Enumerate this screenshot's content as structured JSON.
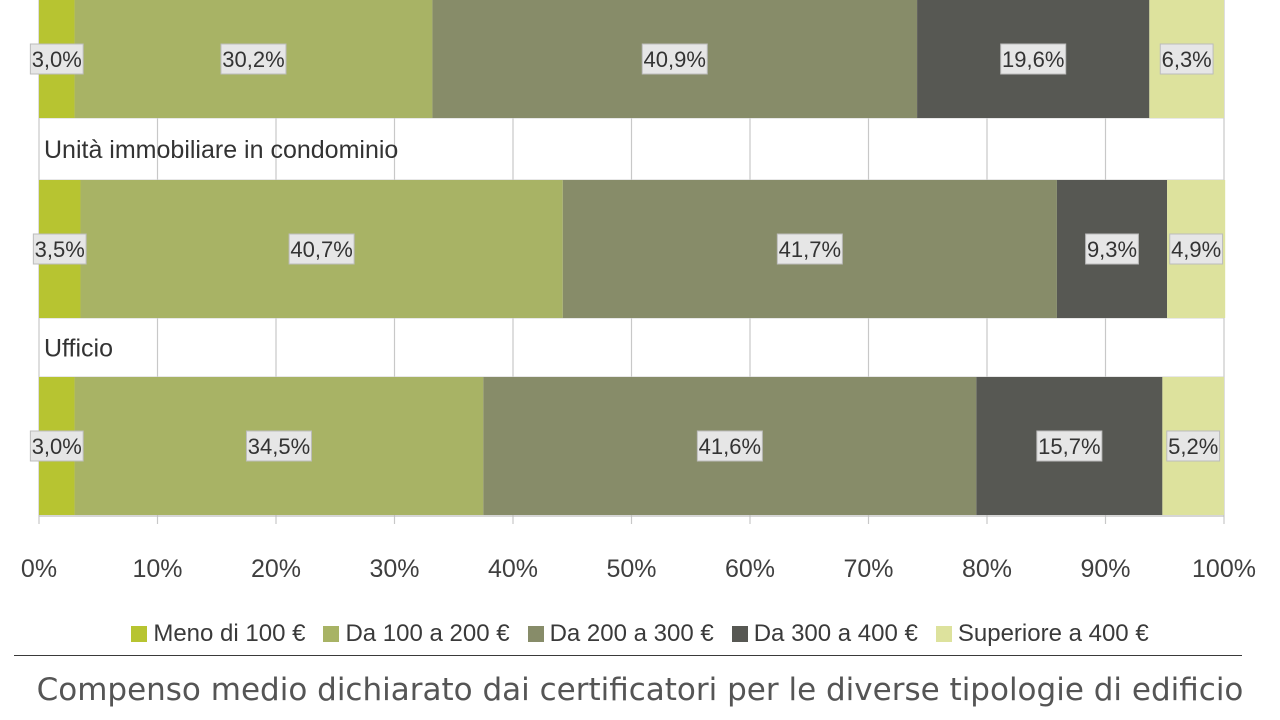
{
  "chart_data": {
    "type": "bar",
    "orientation": "horizontal",
    "stacked": true,
    "percent": true,
    "xlim": [
      0,
      100
    ],
    "x_ticks": [
      "0%",
      "10%",
      "20%",
      "30%",
      "40%",
      "50%",
      "60%",
      "70%",
      "80%",
      "90%",
      "100%"
    ],
    "grid": true,
    "legend_position": "bottom",
    "series": [
      {
        "name": "Meno di 100 €",
        "color": "#b7c431"
      },
      {
        "name": "Da 100 a 200 €",
        "color": "#a8b365"
      },
      {
        "name": "Da 200 a 300 €",
        "color": "#878c69"
      },
      {
        "name": "Da 300 a 400 €",
        "color": "#575853"
      },
      {
        "name": "Superiore a 400 €",
        "color": "#dde29d"
      }
    ],
    "categories": [
      {
        "label": "",
        "values": [
          3.0,
          30.2,
          40.9,
          19.6,
          6.3
        ],
        "value_labels": [
          "3,0%",
          "30,2%",
          "40,9%",
          "19,6%",
          "6,3%"
        ]
      },
      {
        "label": "Unità immobiliare in condominio",
        "values": [
          3.5,
          40.7,
          41.7,
          9.3,
          4.9
        ],
        "value_labels": [
          "3,5%",
          "40,7%",
          "41,7%",
          "9,3%",
          "4,9%"
        ]
      },
      {
        "label": "Ufficio",
        "values": [
          3.0,
          34.5,
          41.6,
          15.7,
          5.2
        ],
        "value_labels": [
          "3,0%",
          "34,5%",
          "41,6%",
          "15,7%",
          "5,2%"
        ]
      }
    ]
  },
  "caption": "Compenso medio dichiarato dai certificatori per le diverse tipologie di edificio"
}
